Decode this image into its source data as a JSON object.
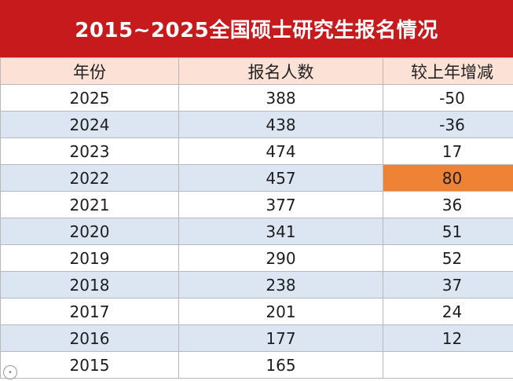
{
  "title": "2015~2025全国硕士研究生报名情况",
  "headers": [
    "年份",
    "报名人数",
    "较上年增减"
  ],
  "rows": [
    {
      "year": "2025",
      "count": "388",
      "change": "-50"
    },
    {
      "year": "2024",
      "count": "438",
      "change": "-36"
    },
    {
      "year": "2023",
      "count": "474",
      "change": "17"
    },
    {
      "year": "2022",
      "count": "457",
      "change": "80"
    },
    {
      "year": "2021",
      "count": "377",
      "change": "36"
    },
    {
      "year": "2020",
      "count": "341",
      "change": "51"
    },
    {
      "year": "2019",
      "count": "290",
      "change": "52"
    },
    {
      "year": "2018",
      "count": "238",
      "change": "37"
    },
    {
      "year": "2017",
      "count": "201",
      "change": "24"
    },
    {
      "year": "2016",
      "count": "177",
      "change": "12"
    },
    {
      "year": "2015",
      "count": "165",
      "change": ""
    }
  ],
  "colors": {
    "title_bg": "#c71a1d",
    "header_bg": "#fbe1d6",
    "stripe": "#dce6f2",
    "negative_text": "#d62b2b",
    "highlight": "#ee8335"
  },
  "icons": {
    "watermark": "circle-mark-icon"
  }
}
